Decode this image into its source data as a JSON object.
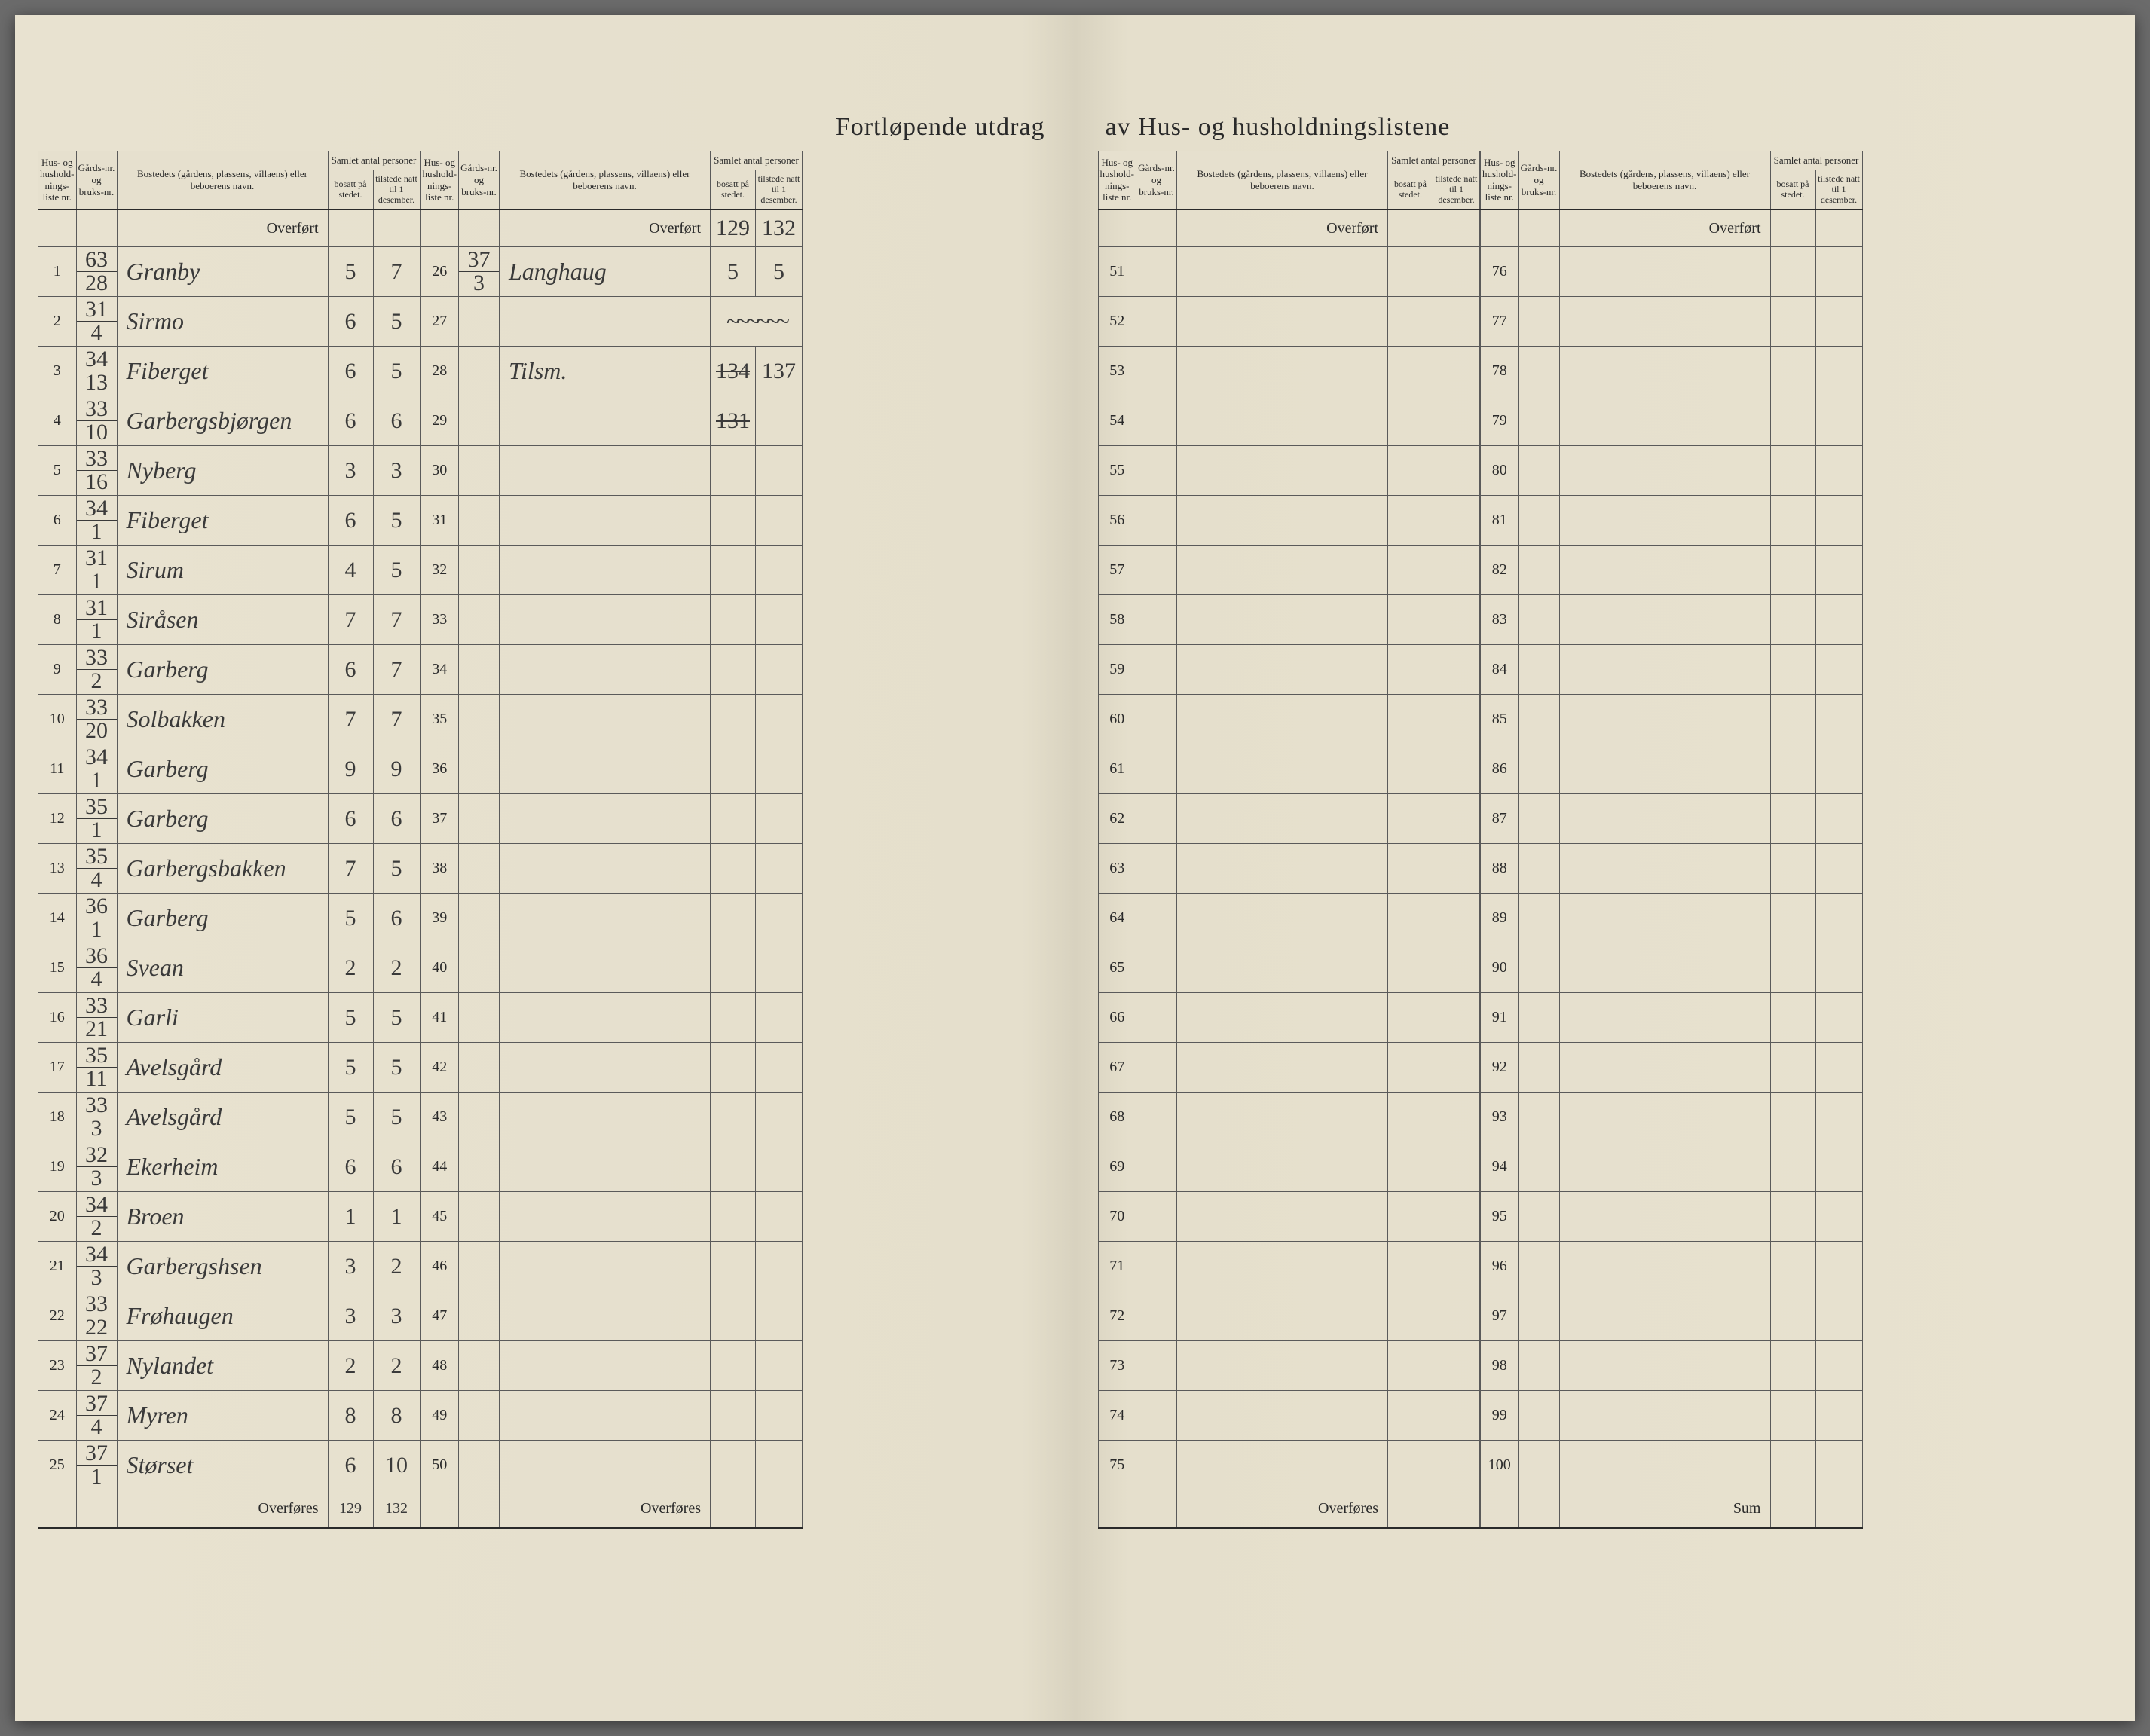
{
  "spread_title_left": "Fortløpende utdrag",
  "spread_title_right": "av Hus- og husholdningslistene",
  "headers": {
    "hus_nr": "Hus- og hushold-nings-liste nr.",
    "gards_nr": "Gårds-nr. og bruks-nr.",
    "bosted": "Bostedets (gårdens, plassens, villaens) eller beboerens navn.",
    "samlet": "Samlet antal personer",
    "bosatt": "bosatt på stedet.",
    "tilstede": "tilstede natt til 1 desember."
  },
  "overfort_label": "Overført",
  "overfores_label": "Overføres",
  "sum_label": "Sum",
  "left_block1": {
    "rows": [
      {
        "nr": "1",
        "gards_t": "63",
        "gards_b": "28",
        "name": "Granby",
        "bosatt": "5",
        "tilstede": "7"
      },
      {
        "nr": "2",
        "gards_t": "31",
        "gards_b": "4",
        "name": "Sirmo",
        "bosatt": "6",
        "tilstede": "5"
      },
      {
        "nr": "3",
        "gards_t": "34",
        "gards_b": "13",
        "name": "Fiberget",
        "bosatt": "6",
        "tilstede": "5"
      },
      {
        "nr": "4",
        "gards_t": "33",
        "gards_b": "10",
        "name": "Garbergsbjørgen",
        "bosatt": "6",
        "tilstede": "6"
      },
      {
        "nr": "5",
        "gards_t": "33",
        "gards_b": "16",
        "name": "Nyberg",
        "bosatt": "3",
        "tilstede": "3"
      },
      {
        "nr": "6",
        "gards_t": "34",
        "gards_b": "1",
        "name": "Fiberget",
        "bosatt": "6",
        "tilstede": "5"
      },
      {
        "nr": "7",
        "gards_t": "31",
        "gards_b": "1",
        "name": "Sirum",
        "bosatt": "4",
        "tilstede": "5"
      },
      {
        "nr": "8",
        "gards_t": "31",
        "gards_b": "1",
        "name": "Siråsen",
        "bosatt": "7",
        "tilstede": "7"
      },
      {
        "nr": "9",
        "gards_t": "33",
        "gards_b": "2",
        "name": "Garberg",
        "bosatt": "6",
        "tilstede": "7"
      },
      {
        "nr": "10",
        "gards_t": "33",
        "gards_b": "20",
        "name": "Solbakken",
        "bosatt": "7",
        "tilstede": "7"
      },
      {
        "nr": "11",
        "gards_t": "34",
        "gards_b": "1",
        "name": "Garberg",
        "bosatt": "9",
        "tilstede": "9"
      },
      {
        "nr": "12",
        "gards_t": "35",
        "gards_b": "1",
        "name": "Garberg",
        "bosatt": "6",
        "tilstede": "6"
      },
      {
        "nr": "13",
        "gards_t": "35",
        "gards_b": "4",
        "name": "Garbergsbakken",
        "bosatt": "7",
        "tilstede": "5"
      },
      {
        "nr": "14",
        "gards_t": "36",
        "gards_b": "1",
        "name": "Garberg",
        "bosatt": "5",
        "tilstede": "6"
      },
      {
        "nr": "15",
        "gards_t": "36",
        "gards_b": "4",
        "name": "Svean",
        "bosatt": "2",
        "tilstede": "2"
      },
      {
        "nr": "16",
        "gards_t": "33",
        "gards_b": "21",
        "name": "Garli",
        "bosatt": "5",
        "tilstede": "5"
      },
      {
        "nr": "17",
        "gards_t": "35",
        "gards_b": "11",
        "name": "Avelsgård",
        "bosatt": "5",
        "tilstede": "5"
      },
      {
        "nr": "18",
        "gards_t": "33",
        "gards_b": "3",
        "name": "Avelsgård",
        "bosatt": "5",
        "tilstede": "5"
      },
      {
        "nr": "19",
        "gards_t": "32",
        "gards_b": "3",
        "name": "Ekerheim",
        "bosatt": "6",
        "tilstede": "6"
      },
      {
        "nr": "20",
        "gards_t": "34",
        "gards_b": "2",
        "name": "Broen",
        "bosatt": "1",
        "tilstede": "1"
      },
      {
        "nr": "21",
        "gards_t": "34",
        "gards_b": "3",
        "name": "Garbergshsen",
        "bosatt": "3",
        "tilstede": "2"
      },
      {
        "nr": "22",
        "gards_t": "33",
        "gards_b": "22",
        "name": "Frøhaugen",
        "bosatt": "3",
        "tilstede": "3"
      },
      {
        "nr": "23",
        "gards_t": "37",
        "gards_b": "2",
        "name": "Nylandet",
        "bosatt": "2",
        "tilstede": "2"
      },
      {
        "nr": "24",
        "gards_t": "37",
        "gards_b": "4",
        "name": "Myren",
        "bosatt": "8",
        "tilstede": "8"
      },
      {
        "nr": "25",
        "gards_t": "37",
        "gards_b": "1",
        "name": "Størset",
        "bosatt": "6",
        "tilstede": "10"
      }
    ],
    "footer_bosatt": "129",
    "footer_tilstede": "132"
  },
  "left_block2": {
    "overfort_bosatt": "129",
    "overfort_tilstede": "132",
    "rows": [
      {
        "nr": "26",
        "gards_t": "37",
        "gards_b": "3",
        "name": "Langhaug",
        "bosatt": "5",
        "tilstede": "5"
      },
      {
        "nr": "27",
        "gards_t": "",
        "gards_b": "",
        "name": "",
        "bosatt": "",
        "tilstede": "",
        "squiggle": true
      },
      {
        "nr": "28",
        "gards_t": "",
        "gards_b": "",
        "name": "Tilsm.",
        "bosatt": "134",
        "tilstede": "137",
        "struck_bosatt": true
      },
      {
        "nr": "29",
        "gards_t": "",
        "gards_b": "",
        "name": "",
        "bosatt": "131",
        "tilstede": "",
        "struck_both": true
      },
      {
        "nr": "30"
      },
      {
        "nr": "31"
      },
      {
        "nr": "32"
      },
      {
        "nr": "33"
      },
      {
        "nr": "34"
      },
      {
        "nr": "35"
      },
      {
        "nr": "36"
      },
      {
        "nr": "37"
      },
      {
        "nr": "38"
      },
      {
        "nr": "39"
      },
      {
        "nr": "40"
      },
      {
        "nr": "41"
      },
      {
        "nr": "42"
      },
      {
        "nr": "43"
      },
      {
        "nr": "44"
      },
      {
        "nr": "45"
      },
      {
        "nr": "46"
      },
      {
        "nr": "47"
      },
      {
        "nr": "48"
      },
      {
        "nr": "49"
      },
      {
        "nr": "50"
      }
    ]
  },
  "right_block1": {
    "rows": [
      {
        "nr": "51"
      },
      {
        "nr": "52"
      },
      {
        "nr": "53"
      },
      {
        "nr": "54"
      },
      {
        "nr": "55"
      },
      {
        "nr": "56"
      },
      {
        "nr": "57"
      },
      {
        "nr": "58"
      },
      {
        "nr": "59"
      },
      {
        "nr": "60"
      },
      {
        "nr": "61"
      },
      {
        "nr": "62"
      },
      {
        "nr": "63"
      },
      {
        "nr": "64"
      },
      {
        "nr": "65"
      },
      {
        "nr": "66"
      },
      {
        "nr": "67"
      },
      {
        "nr": "68"
      },
      {
        "nr": "69"
      },
      {
        "nr": "70"
      },
      {
        "nr": "71"
      },
      {
        "nr": "72"
      },
      {
        "nr": "73"
      },
      {
        "nr": "74"
      },
      {
        "nr": "75"
      }
    ]
  },
  "right_block2": {
    "rows": [
      {
        "nr": "76"
      },
      {
        "nr": "77"
      },
      {
        "nr": "78"
      },
      {
        "nr": "79"
      },
      {
        "nr": "80"
      },
      {
        "nr": "81"
      },
      {
        "nr": "82"
      },
      {
        "nr": "83"
      },
      {
        "nr": "84"
      },
      {
        "nr": "85"
      },
      {
        "nr": "86"
      },
      {
        "nr": "87"
      },
      {
        "nr": "88"
      },
      {
        "nr": "89"
      },
      {
        "nr": "90"
      },
      {
        "nr": "91"
      },
      {
        "nr": "92"
      },
      {
        "nr": "93"
      },
      {
        "nr": "94"
      },
      {
        "nr": "95"
      },
      {
        "nr": "96"
      },
      {
        "nr": "97"
      },
      {
        "nr": "98"
      },
      {
        "nr": "99"
      },
      {
        "nr": "100"
      }
    ]
  },
  "colors": {
    "paper": "#e8e2d0",
    "ink": "#2a2a2a",
    "handwriting": "#3a3a3a",
    "rule": "#5a5a5a"
  }
}
